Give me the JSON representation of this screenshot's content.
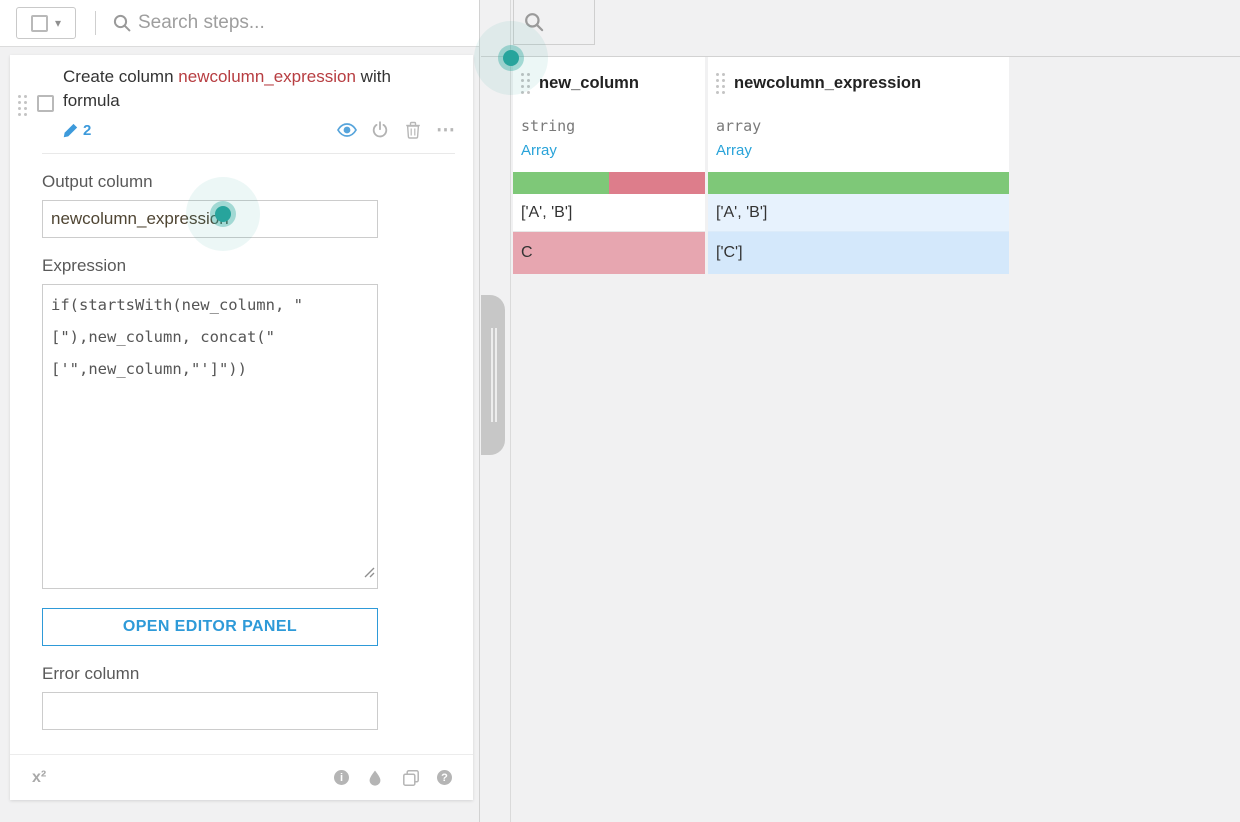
{
  "toolbar": {
    "search_placeholder": "Search steps..."
  },
  "step": {
    "title_prefix": "Create column ",
    "title_column": "newcolumn_expression",
    "title_suffix": " with formula",
    "edit_count": "2",
    "output_column_label": "Output column",
    "output_column_value": "newcolumn_expression",
    "expression_label": "Expression",
    "expression_value": "if(startsWith(new_column, \"[\"),new_column, concat(\"['\",new_column,\"']\"))",
    "open_editor_button": "OPEN EDITOR PANEL",
    "error_column_label": "Error column",
    "error_column_value": "",
    "formula_indicator": "x²"
  },
  "icons": {
    "caret": "▾",
    "more": "⋯",
    "info": "i",
    "help": "?"
  },
  "table": {
    "columns": [
      {
        "name": "new_column",
        "type": "string",
        "meaning": "Array",
        "valid_pct": 50,
        "invalid_pct": 50
      },
      {
        "name": "newcolumn_expression",
        "type": "array",
        "meaning": "Array",
        "valid_pct": 100,
        "invalid_pct": 0
      }
    ],
    "rows": [
      {
        "cells": [
          "['A', 'B']",
          "['A', 'B']"
        ],
        "states": [
          "plain",
          "hl-light"
        ]
      },
      {
        "cells": [
          "C",
          "['C']"
        ],
        "states": [
          "invalid",
          "hl"
        ]
      }
    ]
  },
  "colors": {
    "accent_blue": "#3d9adb",
    "link_blue": "#29a3d9",
    "title_red": "#b73d41",
    "valid_green": "#7ec878",
    "invalid_red": "#dd7d8b",
    "invalid_cell_pink": "#e7a6b0",
    "highlight_cell_light": "#e7f2fd",
    "highlight_cell": "#d4e8fb",
    "click_indicator_teal": "#27a49c"
  }
}
